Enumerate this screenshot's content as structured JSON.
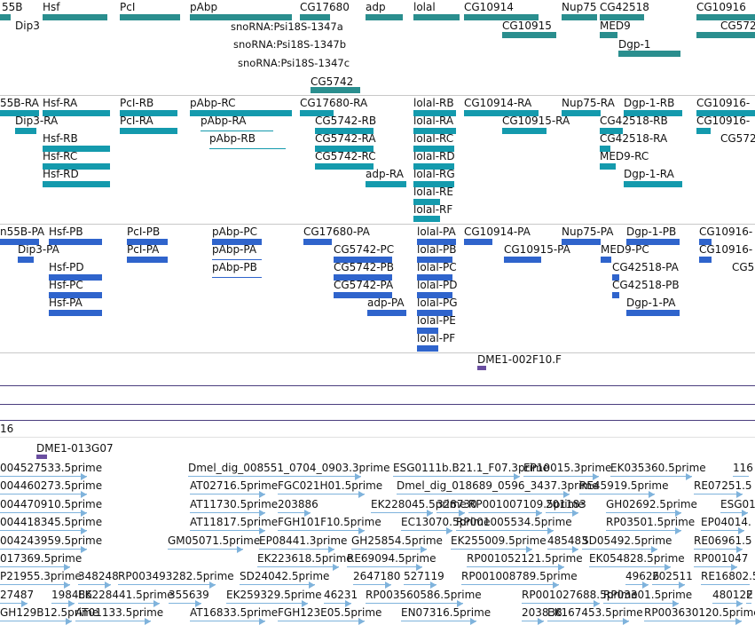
{
  "tracks": {
    "gene_span": {
      "labels": [
        "55B",
        "Hsf",
        "PcI",
        "pAbp",
        "CG17680",
        "adp",
        "lolal",
        "CG10914",
        "Nup75",
        "CG42518",
        "CG10916",
        "Dip3",
        "CG10915",
        "MED9",
        "Dgp-1",
        "snoRNA:Psi18S-1347a",
        "snoRNA:Psi18S-1347b",
        "snoRNA:Psi18S-1347c",
        "CG5742",
        "CG572"
      ]
    },
    "rna": {
      "labels": [
        "55B-RA",
        "Hsf-RA",
        "PcI-RB",
        "pAbp-RC",
        "CG17680-RA",
        "lolal-RB",
        "CG10914-RA",
        "Nup75-RA",
        "Dgp-1-RB",
        "CG10916-",
        "Dip3-RA",
        "PcI-RA",
        "pAbp-RA",
        "CG5742-RB",
        "lolal-RA",
        "CG10915-RA",
        "CG42518-RB",
        "CG10916-",
        "Hsf-RB",
        "pAbp-RB",
        "CG5742-RA",
        "lolal-RC",
        "CG42518-RA",
        "CG572",
        "Hsf-RC",
        "CG5742-RC",
        "lolal-RD",
        "MED9-RC",
        "Hsf-RD",
        "adp-RA",
        "lolal-RG",
        "Dgp-1-RA",
        "lolal-RE",
        "lolal-RF"
      ]
    },
    "protein": {
      "labels": [
        "n55B-PA",
        "Hsf-PB",
        "PcI-PB",
        "pAbp-PC",
        "CG17680-PA",
        "lolal-PA",
        "CG10914-PA",
        "Nup75-PA",
        "Dgp-1-PB",
        "CG10916-",
        "Dip3-PA",
        "PcI-PA",
        "pAbp-PA",
        "CG5742-PC",
        "lolal-PB",
        "CG10915-PA",
        "MED9-PC",
        "CG10916-",
        "Hsf-PD",
        "pAbp-PB",
        "CG5742-PB",
        "lolal-PC",
        "CG42518-PA",
        "CG5",
        "Hsf-PC",
        "CG5742-PA",
        "lolal-PD",
        "CG42518-PB",
        "Hsf-PA",
        "adp-PA",
        "lolal-PG",
        "Dgp-1-PA",
        "lolal-PE",
        "lolal-PF"
      ]
    },
    "clone": {
      "label": "DME1-002F10.F"
    },
    "stub_label": "16",
    "clone2": {
      "label": "DME1-013G07"
    },
    "est": {
      "rows": [
        [
          "004527533.5prime",
          "Dmel_dig_008551_0704_0903.3prime",
          "ESG0111b.B21.1_F07.3prime",
          "EP10015.3prime",
          "EK035360.5prime",
          "116"
        ],
        [
          "004460273.5prime",
          "AT02716.5prime",
          "FGC021H01.5prime",
          "Dmel_dig_018689_0596_3437.3prime",
          "RE45919.5prime",
          "RE07251.5"
        ],
        [
          "004470910.5prime",
          "AT11730.5prime",
          "203886",
          "EK228045.5prime",
          "328730",
          "RP001007109.5prime",
          "201183",
          "GH02692.5prime",
          "ESG01"
        ],
        [
          "004418345.5prime",
          "AT11817.5prime",
          "FGH101F10.5prime",
          "EC13070.5prime",
          "RP001005534.5prime",
          "RP03501.5prime",
          "EP04014."
        ],
        [
          "004243959.5prime",
          "GM05071.5prime",
          "EP08441.3prime",
          "GH25854.5prime",
          "EK255009.5prime",
          "485483",
          "SD05492.5prime",
          "RE06961.5"
        ],
        [
          "017369.5prime",
          "EK223618.5prime",
          "RE69094.5prime",
          "RP001052121.5prime",
          "EK054828.5prime",
          "RP001047"
        ],
        [
          "P21955.3prime",
          "348248",
          "RP003493282.5prime",
          "SD24042.5prime",
          "2647180",
          "527119",
          "RP001008789.5prime",
          "49626",
          "202511",
          "RE16802.5"
        ],
        [
          "27487",
          "198486",
          "EK228441.5prime",
          "355639",
          "EK259329.5prime",
          "46231",
          "RP003560586.5prime",
          "RP001027688.5prime",
          "RP03301.5prime",
          "480122",
          "E"
        ],
        [
          "GH129B12.5prime",
          "AT01133.5prime",
          "AT16833.5prime",
          "FGH123E05.5prime",
          "EN07316.5prime",
          "203838",
          "EK167453.5prime",
          "RP003630120.5prime"
        ]
      ]
    }
  },
  "colors": {
    "gene_span": "#2a8e8e",
    "rna": "#149aad",
    "protein": "#2f64cc",
    "clone": "#6a4ea0",
    "est": "#7fb3dc",
    "rule": "#4a3d7e"
  }
}
